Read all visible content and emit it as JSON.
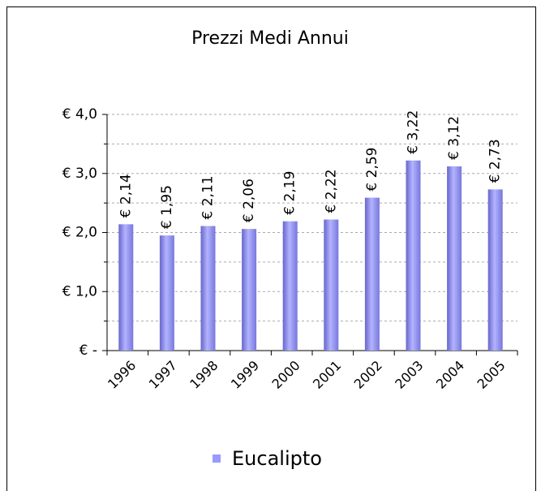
{
  "chart_data": {
    "type": "bar",
    "title": "Prezzi Medi Annui",
    "categories": [
      "1996",
      "1997",
      "1998",
      "1999",
      "2000",
      "2001",
      "2002",
      "2003",
      "2004",
      "2005"
    ],
    "series": [
      {
        "name": "Eucalipto",
        "color": "#9999ff",
        "values": [
          2.14,
          1.95,
          2.11,
          2.06,
          2.19,
          2.22,
          2.59,
          3.22,
          3.12,
          2.73
        ],
        "value_labels": [
          "€ 2,14",
          "€ 1,95",
          "€ 2,11",
          "€ 2,06",
          "€ 2,19",
          "€ 2,22",
          "€ 2,59",
          "€ 3,22",
          "€ 3,12",
          "€ 2,73"
        ]
      }
    ],
    "ylim": [
      0,
      4
    ],
    "yticks": [
      {
        "value": 0,
        "label": "€ -"
      },
      {
        "value": 1,
        "label": "€ 1,0"
      },
      {
        "value": 2,
        "label": "€ 2,0"
      },
      {
        "value": 3,
        "label": "€ 3,0"
      },
      {
        "value": 4,
        "label": "€ 4,0"
      }
    ],
    "minor_yticks": [
      0.5,
      1.5,
      2.5,
      3.5
    ],
    "grid": true,
    "legend": "bottom"
  }
}
